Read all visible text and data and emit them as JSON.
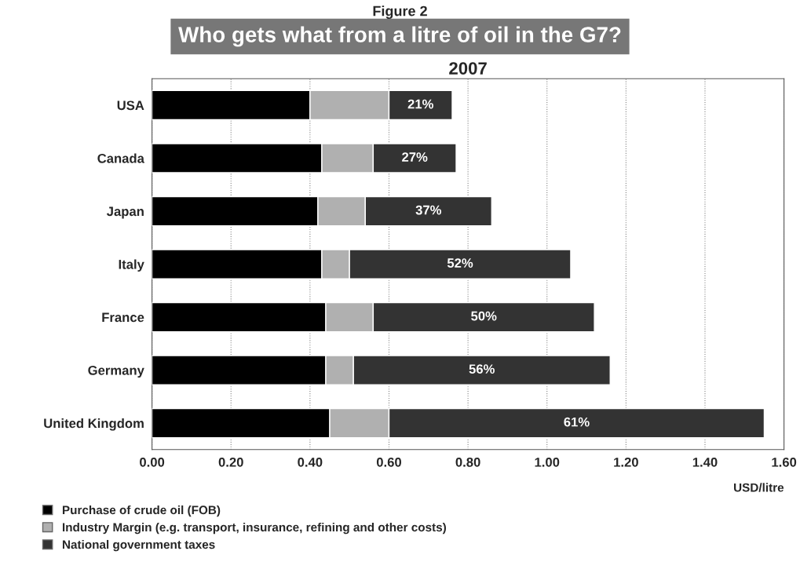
{
  "chart_data": {
    "type": "bar",
    "orientation": "horizontal",
    "stacked": true,
    "title": "Who gets what from a litre of oil in the G7?",
    "subtitle": "2007",
    "xlabel": "USD/litre",
    "annotations": [
      "Figure 2",
      "21%",
      "27%",
      "37%",
      "52%",
      "50%",
      "56%",
      "61%"
    ],
    "categories": [
      "USA",
      "Canada",
      "Japan",
      "Italy",
      "France",
      "Germany",
      "United Kingdom"
    ],
    "series": [
      {
        "name": "Purchase of crude oil (FOB)",
        "color": "#000000",
        "values": [
          0.4,
          0.43,
          0.42,
          0.43,
          0.44,
          0.44,
          0.45
        ]
      },
      {
        "name": "Industry Margin (e.g. transport, insurance, refining and other costs)",
        "color": "#b0b0b0",
        "values": [
          0.2,
          0.13,
          0.12,
          0.07,
          0.12,
          0.07,
          0.15
        ]
      },
      {
        "name": "National government taxes",
        "color": "#333333",
        "values": [
          0.16,
          0.21,
          0.32,
          0.56,
          0.56,
          0.65,
          0.95
        ]
      }
    ],
    "xlim": [
      0,
      1.6
    ],
    "xticks": [
      {
        "value": 0,
        "label": "0.00"
      },
      {
        "value": 0.2,
        "label": "0.20"
      },
      {
        "value": 0.4,
        "label": "0.40"
      },
      {
        "value": 0.6,
        "label": "0.60"
      },
      {
        "value": 0.8,
        "label": "0.80"
      },
      {
        "value": 1.0,
        "label": "1.00"
      },
      {
        "value": 1.2,
        "label": "1.20"
      },
      {
        "value": 1.4,
        "label": "1.40"
      },
      {
        "value": 1.6,
        "label": "1.60"
      }
    ],
    "grid": "x",
    "legend": "bottom left"
  }
}
